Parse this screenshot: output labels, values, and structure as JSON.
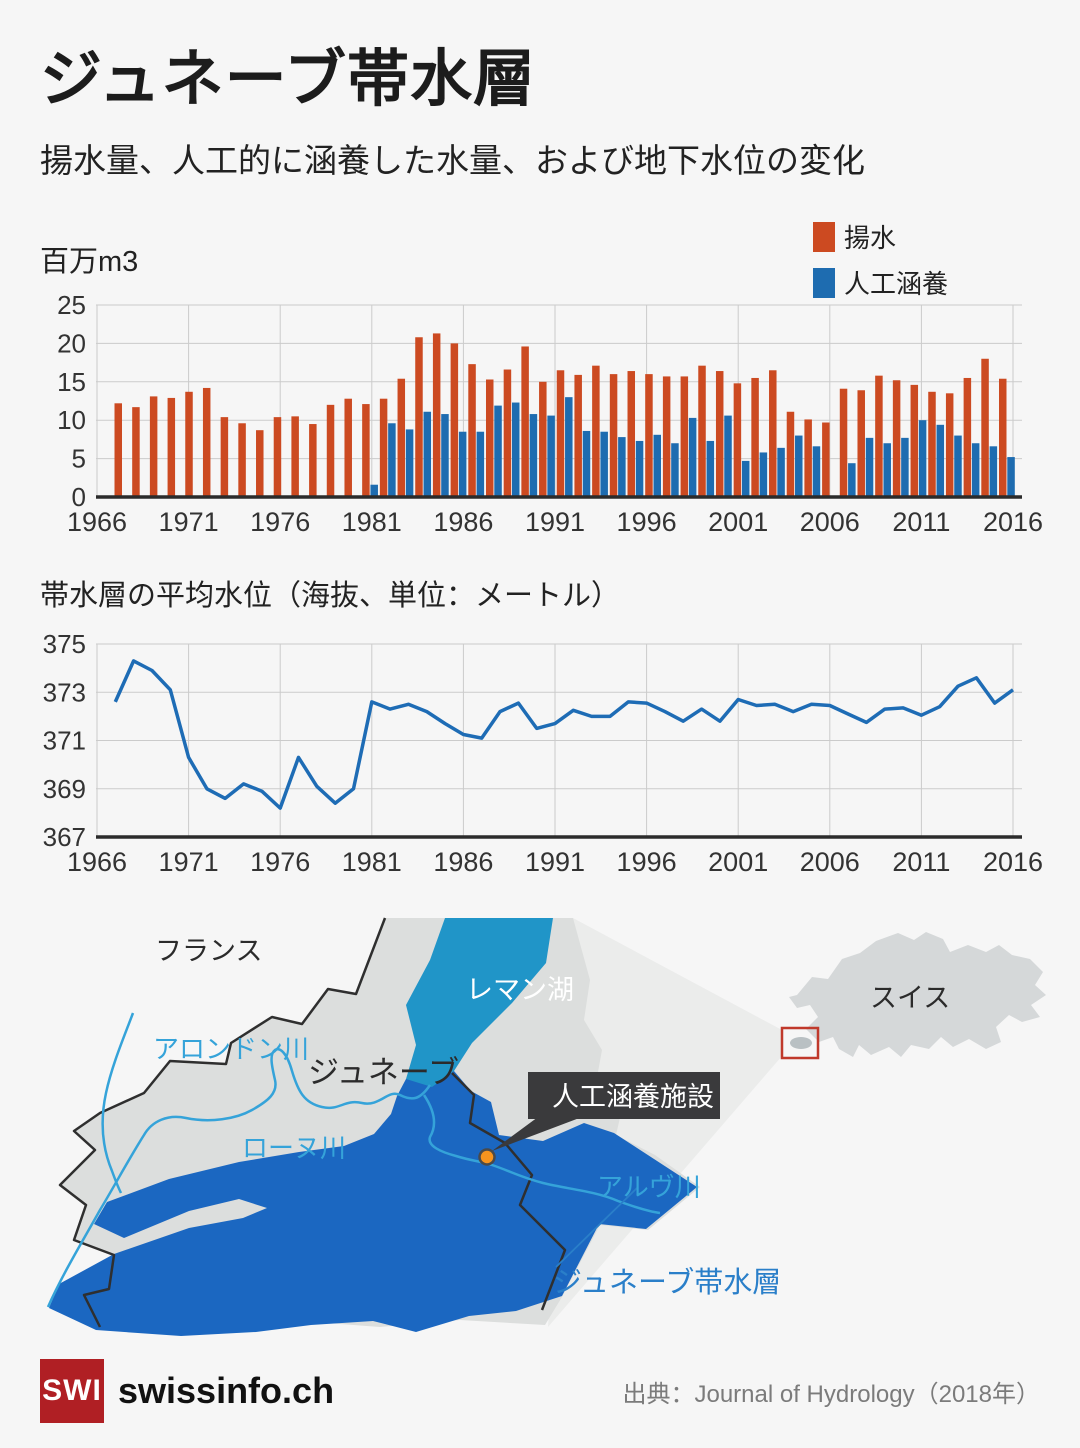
{
  "header": {
    "title": "ジュネーブ帯水層",
    "subtitle": "揚水量、人工的に涵養した水量、および地下水位の変化"
  },
  "legend": {
    "items": [
      {
        "label": "揚水"
      },
      {
        "label": "人工涵養"
      }
    ]
  },
  "colors": {
    "pumping_orange": "#cc4a21",
    "recharge_blue": "#1e6cb0",
    "line_blue": "#1e6cb5",
    "lake_blue": "#2095c8",
    "aquifer_blue": "#1b67c1",
    "river_blue": "#35a3d9",
    "brand_red": "#b01f24",
    "inset_marker_red": "#c0392b"
  },
  "chart_data": [
    {
      "type": "bar",
      "title": "百万m3",
      "ylabel": "百万m3",
      "ylim": [
        0,
        25
      ],
      "yticks": [
        0,
        5,
        10,
        15,
        20,
        25
      ],
      "xticks": [
        1966,
        1971,
        1976,
        1981,
        1986,
        1991,
        1996,
        2001,
        2006,
        2011,
        2016
      ],
      "grid": true,
      "legend_position": "top-right",
      "years": [
        1966,
        1967,
        1968,
        1969,
        1970,
        1971,
        1972,
        1973,
        1974,
        1975,
        1976,
        1977,
        1978,
        1979,
        1980,
        1981,
        1982,
        1983,
        1984,
        1985,
        1986,
        1987,
        1988,
        1989,
        1990,
        1991,
        1992,
        1993,
        1994,
        1995,
        1996,
        1997,
        1998,
        1999,
        2000,
        2001,
        2002,
        2003,
        2004,
        2005,
        2006,
        2007,
        2008,
        2009,
        2010,
        2011,
        2012,
        2013,
        2014,
        2015,
        2016
      ],
      "series": [
        {
          "name": "揚水",
          "color": "#cc4a21",
          "values": [
            12.2,
            11.7,
            13.1,
            12.9,
            13.7,
            14.2,
            10.4,
            9.6,
            8.7,
            10.4,
            10.5,
            9.5,
            12.0,
            12.8,
            12.1,
            12.8,
            15.4,
            20.8,
            21.3,
            20.0,
            17.3,
            15.3,
            16.6,
            19.6,
            15.0,
            16.5,
            15.9,
            17.1,
            16.0,
            16.4,
            16.0,
            15.7,
            15.7,
            17.1,
            16.4,
            14.8,
            15.5,
            16.5,
            11.1,
            10.1,
            9.7,
            14.1,
            13.9,
            15.8,
            15.2,
            14.6,
            13.7,
            13.5,
            15.5,
            18.0,
            15.4
          ]
        },
        {
          "name": "人工涵養",
          "color": "#1e6cb0",
          "values": [
            null,
            null,
            null,
            null,
            null,
            null,
            null,
            null,
            null,
            null,
            null,
            null,
            null,
            null,
            1.6,
            9.6,
            8.8,
            11.1,
            10.8,
            8.5,
            8.5,
            11.9,
            12.3,
            10.8,
            10.6,
            13.0,
            8.6,
            8.5,
            7.8,
            7.3,
            8.1,
            7.0,
            10.3,
            7.3,
            10.6,
            4.7,
            5.8,
            6.4,
            8.0,
            6.6,
            0,
            4.4,
            7.7,
            7.0,
            7.7,
            10.0,
            9.4,
            8.0,
            7.0,
            6.6,
            5.2
          ]
        }
      ]
    },
    {
      "type": "line",
      "title": "帯水層の平均水位（海抜、単位：メートル）",
      "ylim": [
        367,
        375
      ],
      "yticks": [
        367,
        369,
        371,
        373,
        375
      ],
      "xticks": [
        1966,
        1971,
        1976,
        1981,
        1986,
        1991,
        1996,
        2001,
        2006,
        2011,
        2016
      ],
      "grid": true,
      "years": [
        1967,
        1968,
        1969,
        1970,
        1971,
        1972,
        1973,
        1974,
        1975,
        1976,
        1977,
        1978,
        1979,
        1980,
        1981,
        1982,
        1983,
        1984,
        1985,
        1986,
        1987,
        1988,
        1989,
        1990,
        1991,
        1992,
        1993,
        1994,
        1995,
        1996,
        1997,
        1998,
        1999,
        2000,
        2001,
        2002,
        2003,
        2004,
        2005,
        2006,
        2007,
        2008,
        2009,
        2010,
        2011,
        2012,
        2013,
        2014,
        2015,
        2016
      ],
      "series": [
        {
          "name": "平均水位",
          "color": "#1e6cb5",
          "values": [
            372.6,
            374.3,
            373.9,
            373.1,
            370.3,
            369.0,
            368.6,
            369.2,
            368.9,
            368.2,
            370.3,
            369.1,
            368.4,
            369.0,
            372.6,
            372.3,
            372.5,
            372.2,
            371.7,
            371.25,
            371.1,
            372.2,
            372.55,
            371.5,
            371.7,
            372.25,
            372.0,
            372.0,
            372.6,
            372.55,
            372.2,
            371.8,
            372.3,
            371.8,
            372.7,
            372.45,
            372.5,
            372.2,
            372.5,
            372.45,
            372.1,
            371.75,
            372.3,
            372.35,
            372.05,
            372.4,
            373.25,
            373.6,
            372.55,
            373.1
          ]
        }
      ]
    }
  ],
  "map": {
    "labels": {
      "france": "フランス",
      "lake": "レマン湖",
      "geneva": "ジュネーブ",
      "allondon": "アロンドン川",
      "rhone": "ローヌ川",
      "arve": "アルヴ川",
      "aquifer": "ジュネーブ帯水層",
      "facility": "人工涵養施設",
      "switzerland": "スイス"
    }
  },
  "footer": {
    "logo_text": "SWI",
    "brand": "swissinfo.ch",
    "source": "出典：Journal of Hydrology（2018年）"
  }
}
